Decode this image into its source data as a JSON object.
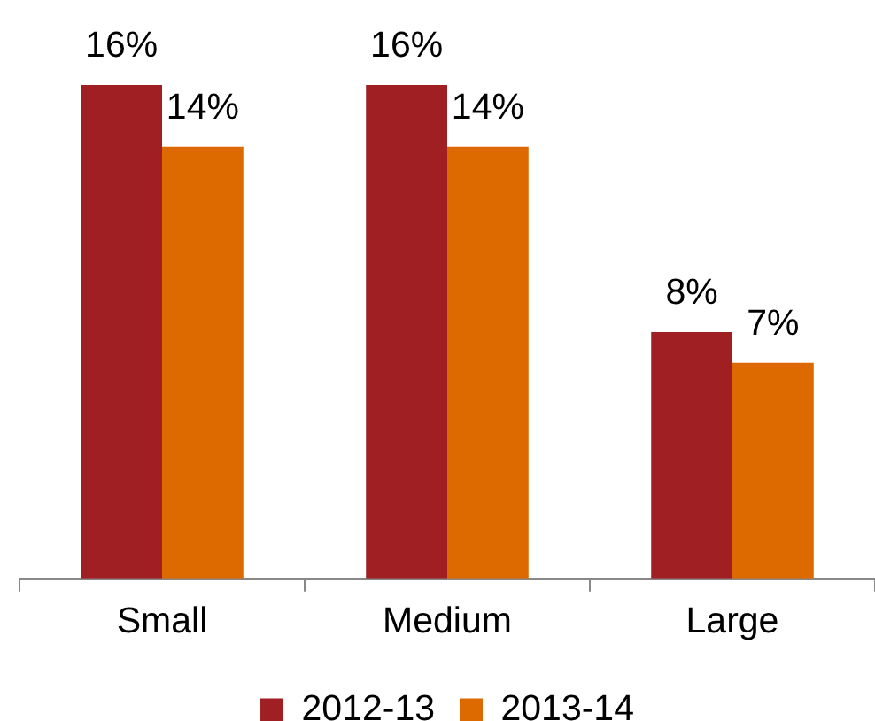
{
  "chart_data": {
    "type": "bar",
    "categories": [
      "Small",
      "Medium",
      "Large"
    ],
    "series": [
      {
        "name": "2012-13",
        "color": "#9f1f22",
        "values": [
          16,
          16,
          8
        ],
        "value_labels": [
          "16%",
          "16%",
          "8%"
        ]
      },
      {
        "name": "2013-14",
        "color": "#dc6a00",
        "values": [
          14,
          14,
          7
        ],
        "value_labels": [
          "14%",
          "14%",
          "7%"
        ]
      }
    ],
    "legend": "bottom"
  }
}
